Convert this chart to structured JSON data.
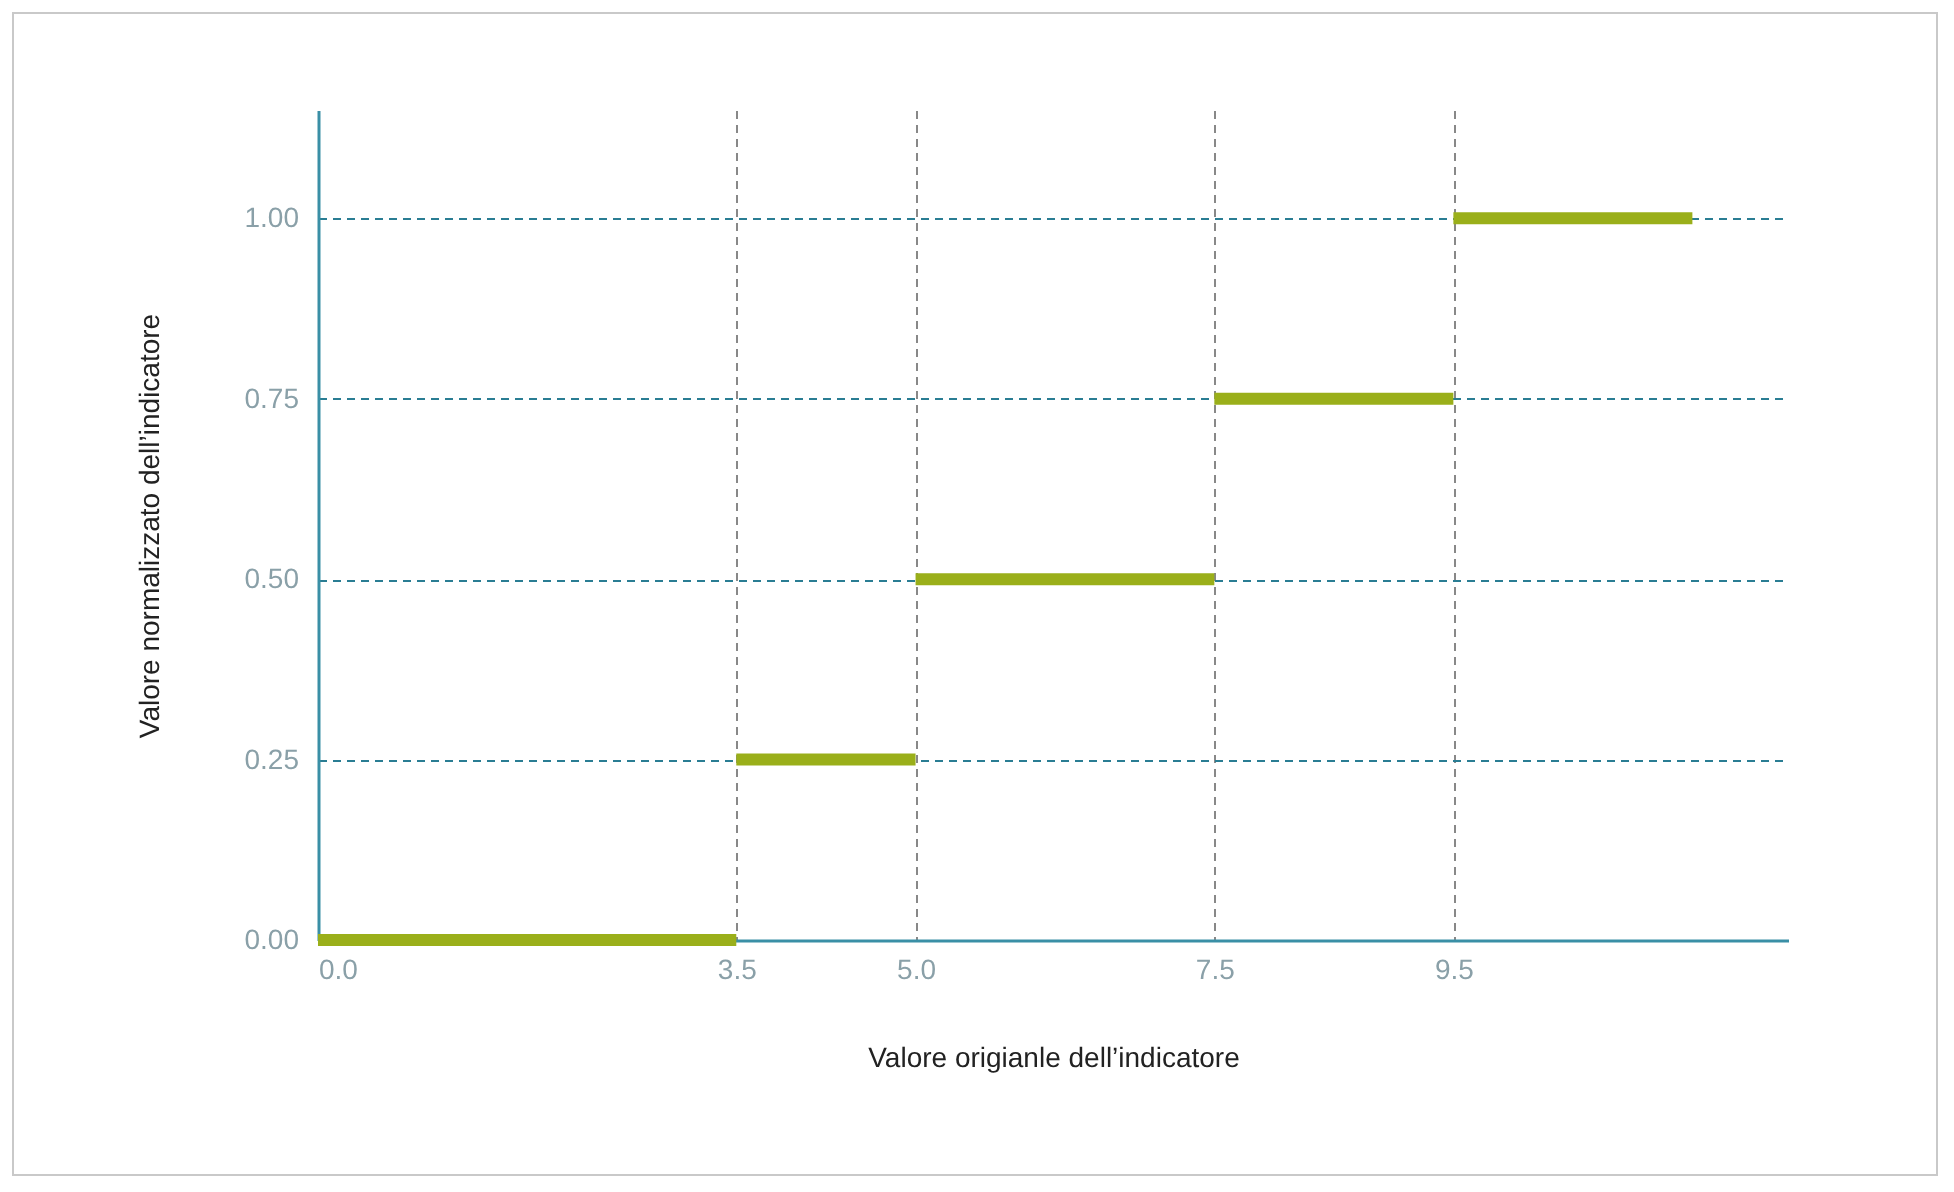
{
  "chart_data": {
    "type": "line",
    "xlabel": "Valore origianle dell’indicatore",
    "ylabel": "Valore normalizzato dell’indicatore",
    "series": [
      {
        "color": "#9aaf1a",
        "x": [
          0,
          3.5
        ],
        "values": [
          0,
          0
        ]
      },
      {
        "color": "#9aaf1a",
        "x": [
          3.5,
          5
        ],
        "values": [
          0.25,
          0.25
        ]
      },
      {
        "color": "#9aaf1a",
        "x": [
          5,
          7.5
        ],
        "values": [
          0.5,
          0.5
        ]
      },
      {
        "color": "#9aaf1a",
        "x": [
          7.5,
          9.5
        ],
        "values": [
          0.75,
          0.75
        ]
      },
      {
        "color": "#9aaf1a",
        "x": [
          9.5,
          11.5
        ],
        "values": [
          1,
          1
        ]
      }
    ],
    "xlim": [
      0,
      12.3
    ],
    "ylim": [
      0,
      1.15
    ],
    "xticks": [
      {
        "value": 0,
        "label": "0.0"
      },
      3.5,
      {
        "value": 5,
        "label": "5.0"
      },
      7.5,
      9.5
    ],
    "yticks": [
      {
        "value": 0,
        "label": "0.00"
      },
      {
        "value": 0.25,
        "label": "0.25"
      },
      {
        "value": 0.5,
        "label": "0.50"
      },
      {
        "value": 0.75,
        "label": "0.75"
      },
      {
        "value": 1,
        "label": "1.00"
      }
    ],
    "grid": true,
    "line_style": "solid",
    "marker": "none"
  }
}
